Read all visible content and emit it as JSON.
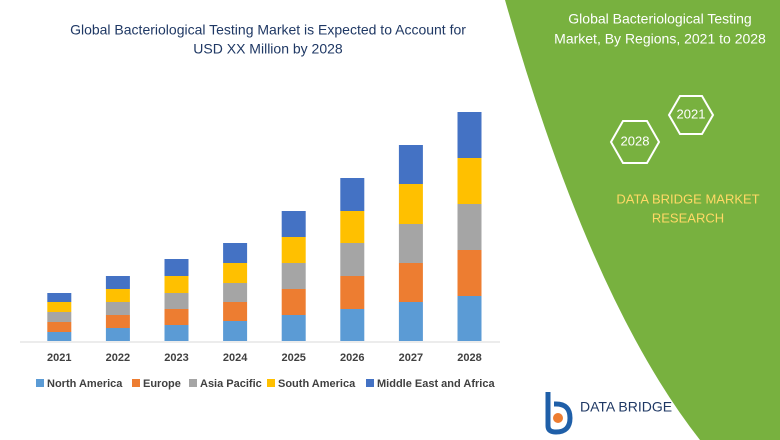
{
  "chart_data": {
    "type": "stacked-bar",
    "title": [
      "Global Bacteriological Testing Market is Expected to Account for",
      "USD XX Million by 2028"
    ],
    "categories": [
      "2021",
      "2022",
      "2023",
      "2024",
      "2025",
      "2026",
      "2027",
      "2028"
    ],
    "series": [
      {
        "name": "North America",
        "color": "#5b9bd5",
        "values": [
          9,
          13,
          16,
          20,
          26,
          32,
          39,
          45
        ]
      },
      {
        "name": "Europe",
        "color": "#ed7d31",
        "values": [
          10,
          13,
          16,
          19,
          26,
          33,
          39,
          46
        ]
      },
      {
        "name": "Asia Pacific",
        "color": "#a5a5a5",
        "values": [
          10,
          13,
          16,
          19,
          26,
          33,
          39,
          46
        ]
      },
      {
        "name": "South America",
        "color": "#ffc000",
        "values": [
          10,
          13,
          17,
          20,
          26,
          32,
          40,
          46
        ]
      },
      {
        "name": "Middle East and Africa",
        "color": "#4472c4",
        "values": [
          9,
          13,
          17,
          20,
          26,
          33,
          39,
          46
        ]
      }
    ]
  },
  "panel": {
    "title": [
      "Global Bacteriological Testing",
      "Market, By Regions, 2021 to 2028"
    ],
    "start_year": "2021",
    "end_year": "2028",
    "brand": [
      "DATA BRIDGE MARKET",
      "RESEARCH"
    ],
    "logo": "DATA BRIDGE"
  }
}
